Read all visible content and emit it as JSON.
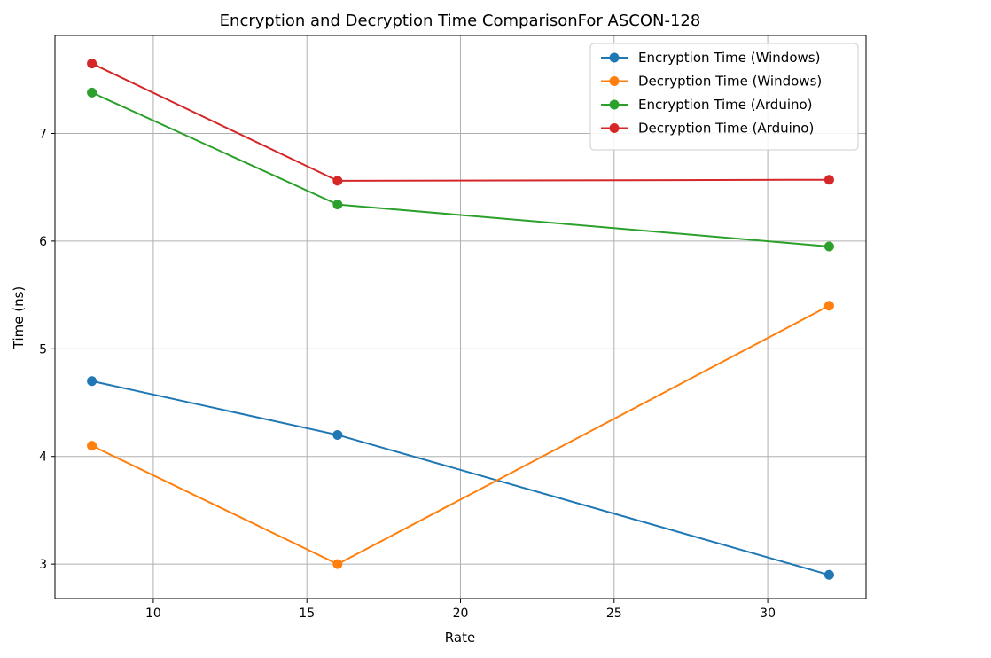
{
  "chart_data": {
    "type": "line",
    "title": "Encryption and Decryption Time ComparisonFor ASCON-128",
    "xlabel": "Rate",
    "ylabel": "Time (ns)",
    "xlim": [
      6.8,
      33.2
    ],
    "ylim": [
      2.68,
      7.91
    ],
    "xticks": [
      10,
      15,
      20,
      25,
      30
    ],
    "yticks": [
      3,
      4,
      5,
      6,
      7
    ],
    "grid": true,
    "legend_position": "upper right",
    "x": [
      8,
      16,
      32
    ],
    "series": [
      {
        "name": "Encryption Time (Windows)",
        "color": "#1f77b4",
        "values": [
          4.7,
          4.2,
          2.9
        ]
      },
      {
        "name": "Decryption Time (Windows)",
        "color": "#ff7f0e",
        "values": [
          4.1,
          3.0,
          5.4
        ]
      },
      {
        "name": "Encryption Time (Arduino)",
        "color": "#2ca02c",
        "values": [
          7.38,
          6.34,
          5.95
        ]
      },
      {
        "name": "Decryption Time (Arduino)",
        "color": "#d62728",
        "values": [
          7.65,
          6.56,
          6.57
        ]
      }
    ]
  }
}
